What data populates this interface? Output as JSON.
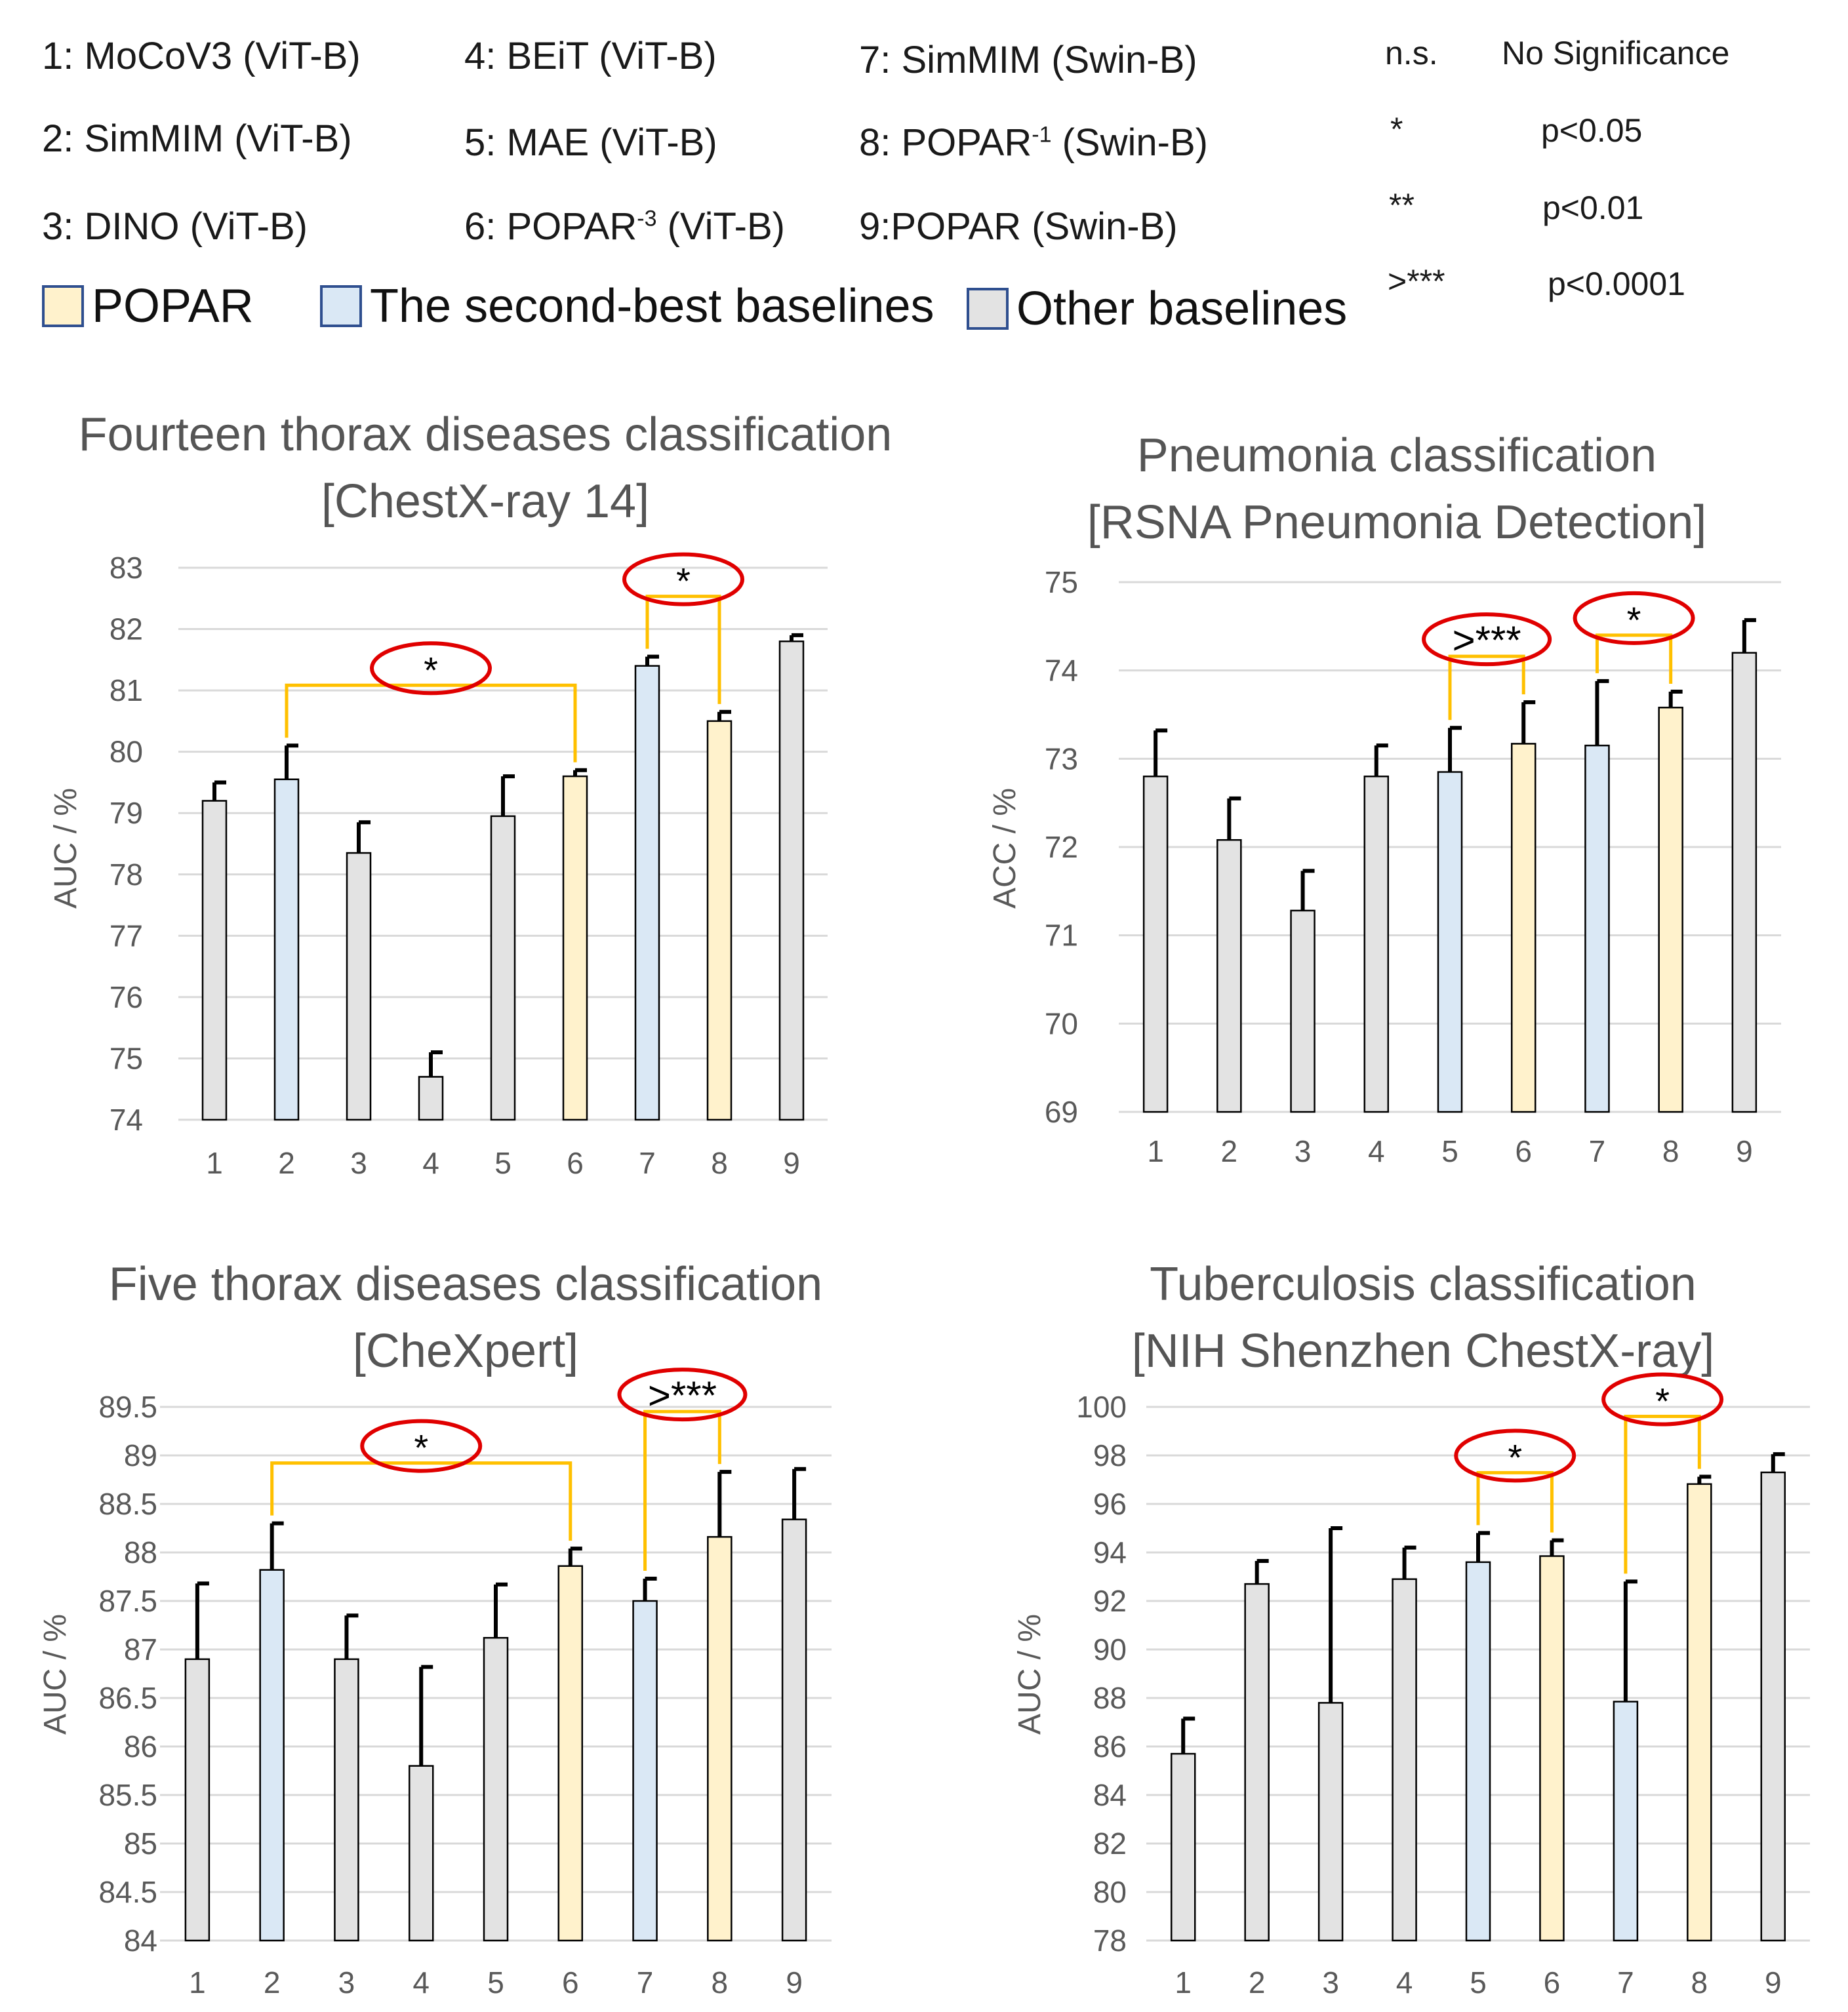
{
  "methods": [
    {
      "num": "1:",
      "name": "MoCoV3 (ViT-B)"
    },
    {
      "num": "2:",
      "name": "SimMIM (ViT-B)"
    },
    {
      "num": "3:",
      "name": "DINO (ViT-B)"
    },
    {
      "num": "4:",
      "name": "BEiT (ViT-B)"
    },
    {
      "num": "5:",
      "name": "MAE (ViT-B)"
    },
    {
      "num": "6:",
      "name": "POPAR",
      "sup": "-3",
      "suffix": " (ViT-B)"
    },
    {
      "num": "7:",
      "name": "SimMIM (Swin-B)"
    },
    {
      "num": "8:",
      "name": "POPAR",
      "sup": "-1",
      "suffix": " (Swin-B)"
    },
    {
      "num": "9:",
      "name": "POPAR (Swin-B)"
    }
  ],
  "significance": [
    {
      "symbol": "n.s.",
      "desc": "No Significance"
    },
    {
      "symbol": "*",
      "desc": "p<0.05"
    },
    {
      "symbol": "**",
      "desc": "p<0.01"
    },
    {
      "symbol": ">***",
      "desc": "p<0.0001"
    }
  ],
  "color_key": [
    {
      "label": "POPAR",
      "color": "#fff2cc"
    },
    {
      "label": "The second-best baselines",
      "color": "#dae8f5"
    },
    {
      "label": "Other baselines",
      "color": "#e3e3e3"
    }
  ],
  "colors": {
    "popar": "#fff2cc",
    "second": "#dae8f5",
    "other": "#e3e3e3",
    "bracket": "#ffc000",
    "ellipse": "#e00000"
  },
  "chart_data": [
    {
      "type": "bar",
      "title": "Fourteen thorax diseases classification",
      "subtitle": "[ChestX-ray 14]",
      "ylabel": "AUC / %",
      "ylim": [
        74,
        83
      ],
      "yticks": [
        "74",
        "75",
        "76",
        "77",
        "78",
        "79",
        "80",
        "81",
        "82",
        "83"
      ],
      "categories": [
        "1",
        "2",
        "3",
        "4",
        "5",
        "6",
        "7",
        "8",
        "9"
      ],
      "values": [
        79.2,
        79.55,
        78.35,
        74.7,
        78.95,
        79.6,
        81.4,
        80.5,
        81.8
      ],
      "errors": [
        0.3,
        0.55,
        0.5,
        0.4,
        0.65,
        0.1,
        0.15,
        0.15,
        0.1
      ],
      "groups": [
        "other",
        "second",
        "other",
        "other",
        "other",
        "popar",
        "second",
        "popar",
        "other"
      ],
      "annotations": [
        {
          "from": 2,
          "to": 6,
          "label": "*"
        },
        {
          "from": 7,
          "to": 8,
          "label": "*"
        }
      ]
    },
    {
      "type": "bar",
      "title": "Pneumonia classification",
      "subtitle": "[RSNA Pneumonia Detection]",
      "ylabel": "ACC / %",
      "ylim": [
        69,
        75
      ],
      "yticks": [
        "69",
        "70",
        "71",
        "72",
        "73",
        "74",
        "75"
      ],
      "categories": [
        "1",
        "2",
        "3",
        "4",
        "5",
        "6",
        "7",
        "8",
        "9"
      ],
      "values": [
        72.8,
        72.08,
        71.28,
        72.8,
        72.85,
        73.17,
        73.15,
        73.58,
        74.2
      ],
      "errors": [
        0.52,
        0.47,
        0.45,
        0.35,
        0.5,
        0.47,
        0.73,
        0.18,
        0.37
      ],
      "groups": [
        "other",
        "other",
        "other",
        "other",
        "second",
        "popar",
        "second",
        "popar",
        "other"
      ],
      "annotations": [
        {
          "from": 5,
          "to": 6,
          "label": ">***"
        },
        {
          "from": 7,
          "to": 8,
          "label": "*"
        }
      ]
    },
    {
      "type": "bar",
      "title": "Five thorax diseases classification",
      "subtitle": "[CheXpert]",
      "ylabel": "AUC / %",
      "ylim": [
        84,
        89.5
      ],
      "yticks": [
        "84",
        "84.5",
        "85",
        "85.5",
        "86",
        "86.5",
        "87",
        "87.5",
        "88",
        "88.5",
        "89",
        "89.5"
      ],
      "categories": [
        "1",
        "2",
        "3",
        "4",
        "5",
        "6",
        "7",
        "8",
        "9"
      ],
      "values": [
        86.9,
        87.82,
        86.9,
        85.8,
        87.12,
        87.86,
        87.5,
        88.16,
        88.34
      ],
      "errors": [
        0.78,
        0.48,
        0.45,
        1.02,
        0.55,
        0.18,
        0.23,
        0.67,
        0.52
      ],
      "groups": [
        "other",
        "second",
        "other",
        "other",
        "other",
        "popar",
        "second",
        "popar",
        "other"
      ],
      "annotations": [
        {
          "from": 2,
          "to": 6,
          "label": "*"
        },
        {
          "from": 7,
          "to": 8,
          "label": ">***"
        }
      ]
    },
    {
      "type": "bar",
      "title": "Tuberculosis classification",
      "subtitle": "[NIH Shenzhen ChestX-ray]",
      "ylabel": "AUC / %",
      "ylim": [
        78,
        100
      ],
      "yticks": [
        "78",
        "80",
        "82",
        "84",
        "86",
        "88",
        "90",
        "92",
        "94",
        "96",
        "98",
        "100"
      ],
      "categories": [
        "1",
        "2",
        "3",
        "4",
        "5",
        "6",
        "7",
        "8",
        "9"
      ],
      "values": [
        85.7,
        92.7,
        87.8,
        92.9,
        93.6,
        93.85,
        87.85,
        96.82,
        97.3
      ],
      "errors": [
        1.45,
        0.95,
        7.2,
        1.3,
        1.2,
        0.65,
        4.95,
        0.3,
        0.75
      ],
      "groups": [
        "other",
        "other",
        "other",
        "other",
        "second",
        "popar",
        "second",
        "popar",
        "other"
      ],
      "annotations": [
        {
          "from": 5,
          "to": 6,
          "label": "*"
        },
        {
          "from": 7,
          "to": 8,
          "label": "*"
        }
      ]
    }
  ]
}
